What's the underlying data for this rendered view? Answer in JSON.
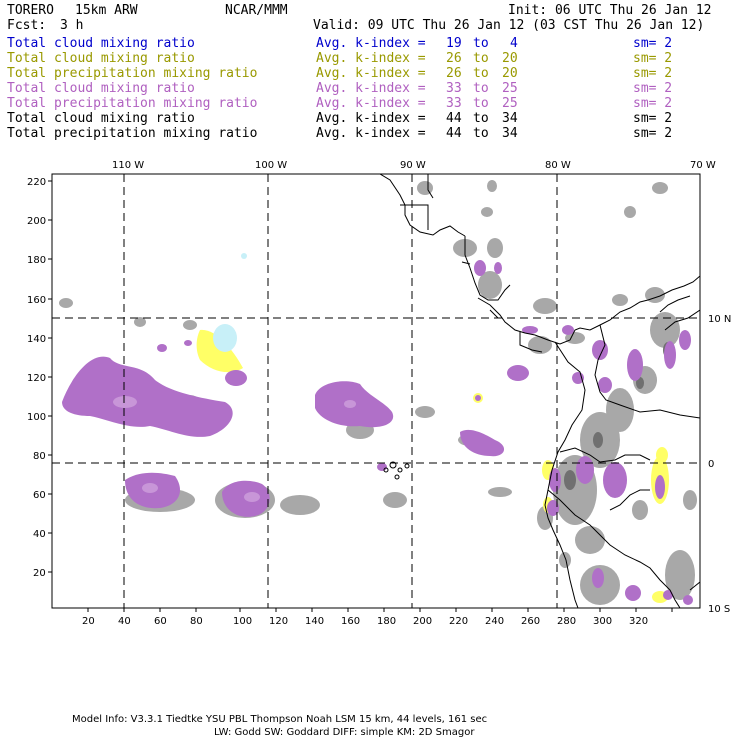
{
  "header": {
    "model": "TORERO",
    "resolution": "15km ARW",
    "org": "NCAR/MMM",
    "init": "Init: 06 UTC Thu 26 Jan 12",
    "fcst_label": "Fcst:",
    "fcst_value": "3 h",
    "valid": "Valid: 09 UTC Thu 26 Jan 12 (03 CST Thu 26 Jan 12)"
  },
  "legend": [
    {
      "field": "Total cloud mixing ratio",
      "kindex": "Avg. k-index =",
      "from": "19",
      "to_word": "to",
      "to": "4",
      "sm": "sm= 2",
      "color": "#0000cc"
    },
    {
      "field": "Total cloud mixing ratio",
      "kindex": "Avg. k-index =",
      "from": "26",
      "to_word": "to",
      "to": "20",
      "sm": "sm= 2",
      "color": "#999900"
    },
    {
      "field": "Total precipitation mixing ratio",
      "kindex": "Avg. k-index =",
      "from": "26",
      "to_word": "to",
      "to": "20",
      "sm": "sm= 2",
      "color": "#999900"
    },
    {
      "field": "Total cloud mixing ratio",
      "kindex": "Avg. k-index =",
      "from": "33",
      "to_word": "to",
      "to": "25",
      "sm": "sm= 2",
      "color": "#b060c0"
    },
    {
      "field": "Total precipitation mixing ratio",
      "kindex": "Avg. k-index =",
      "from": "33",
      "to_word": "to",
      "to": "25",
      "sm": "sm= 2",
      "color": "#b060c0"
    },
    {
      "field": "Total cloud mixing ratio",
      "kindex": "Avg. k-index =",
      "from": "44",
      "to_word": "to",
      "to": "34",
      "sm": "sm= 2",
      "color": "#000000"
    },
    {
      "field": "Total precipitation mixing ratio",
      "kindex": "Avg. k-index =",
      "from": "44",
      "to_word": "to",
      "to": "34",
      "sm": "sm= 2",
      "color": "#000000"
    }
  ],
  "map": {
    "lon_labels": [
      "110 W",
      "100 W",
      "90 W",
      "80 W",
      "70 W"
    ],
    "lat_labels": [
      "10 N",
      "0",
      "10 S"
    ],
    "x_ticks": [
      "20",
      "40",
      "60",
      "80",
      "100",
      "120",
      "140",
      "160",
      "180",
      "200",
      "220",
      "240",
      "260",
      "280",
      "300",
      "320"
    ],
    "y_ticks": [
      "220",
      "200",
      "180",
      "160",
      "140",
      "120",
      "100",
      "80",
      "60",
      "40",
      "20"
    ],
    "colors": {
      "gray": "#a8a8a8",
      "dark_gray": "#707070",
      "purple": "#b070c8",
      "light_purple": "#c896d8",
      "yellow": "#ffff66",
      "cyan": "#c8f0f8"
    }
  },
  "footer": {
    "line1": "Model Info: V3.3.1   Tiedtke YSU PBL  Thompson    Noah LSM  15 km,   44 levels,  161 sec",
    "line2": "LW: Godd SW: Goddard DIFF: simple KM: 2D Smagor"
  }
}
